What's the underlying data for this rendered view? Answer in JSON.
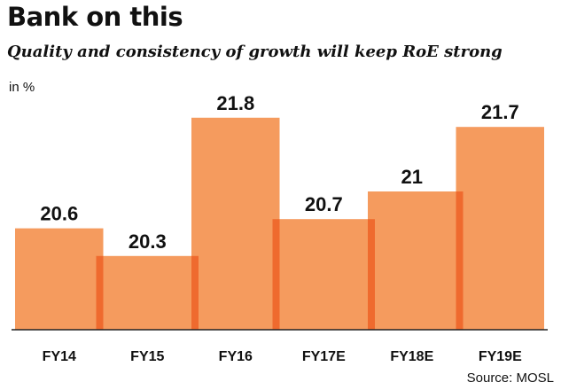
{
  "header": {
    "title": "Bank on this",
    "subtitle": "Quality and consistency of growth will keep RoE strong",
    "unit_label": "in %"
  },
  "footer": {
    "source": "Source: MOSL"
  },
  "colors": {
    "bar_fill": "#F59B5E",
    "bar_edge": "#EF6A2E",
    "axis": "#222222"
  },
  "chart_data": {
    "type": "bar",
    "title": "Bank on this",
    "subtitle": "Quality and consistency of growth will keep RoE strong",
    "xlabel": "",
    "ylabel": "in %",
    "categories": [
      "FY14",
      "FY15",
      "FY16",
      "FY17E",
      "FY18E",
      "FY19E"
    ],
    "values": [
      20.6,
      20.3,
      21.8,
      20.7,
      21,
      21.7
    ],
    "value_labels": [
      "20.6",
      "20.3",
      "21.8",
      "20.7",
      "21",
      "21.7"
    ],
    "ylim": [
      19.5,
      22
    ],
    "grid": false,
    "legend": "none"
  }
}
